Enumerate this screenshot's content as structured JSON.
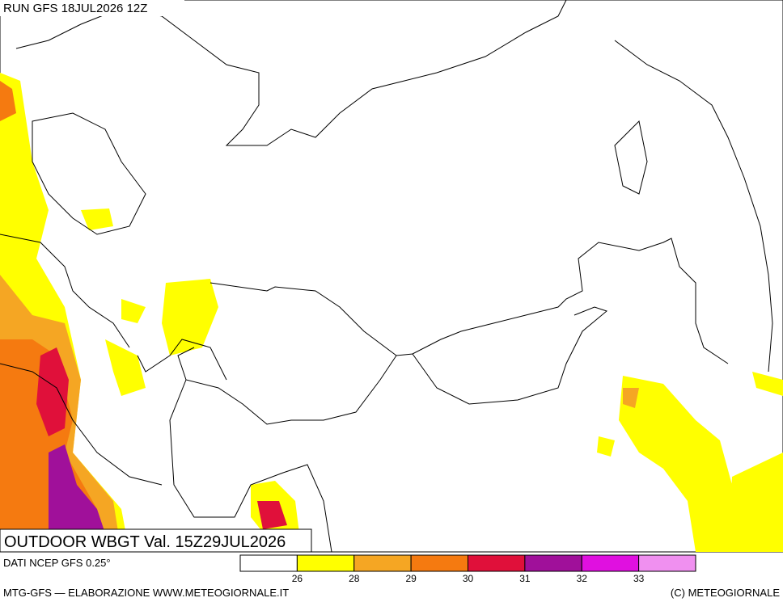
{
  "header": {
    "run": "RUN GFS 18JUL2026 12Z"
  },
  "map": {
    "title": "OUTDOOR WBGT Val. 15Z29JUL2026"
  },
  "legend": {
    "source": "DATI NCEP GFS 0.25°",
    "colors": [
      "#ffffff",
      "#ffff00",
      "#f5a623",
      "#f57a10",
      "#e0103a",
      "#a0109a",
      "#e010e0",
      "#f090f0"
    ],
    "ticks": [
      26,
      28,
      29,
      30,
      31,
      32,
      33
    ]
  },
  "footer": {
    "left": "MTG-GFS — ELABORAZIONE WWW.METEOGIORNALE.IT",
    "right": "(C) METEOGIORNALE"
  }
}
